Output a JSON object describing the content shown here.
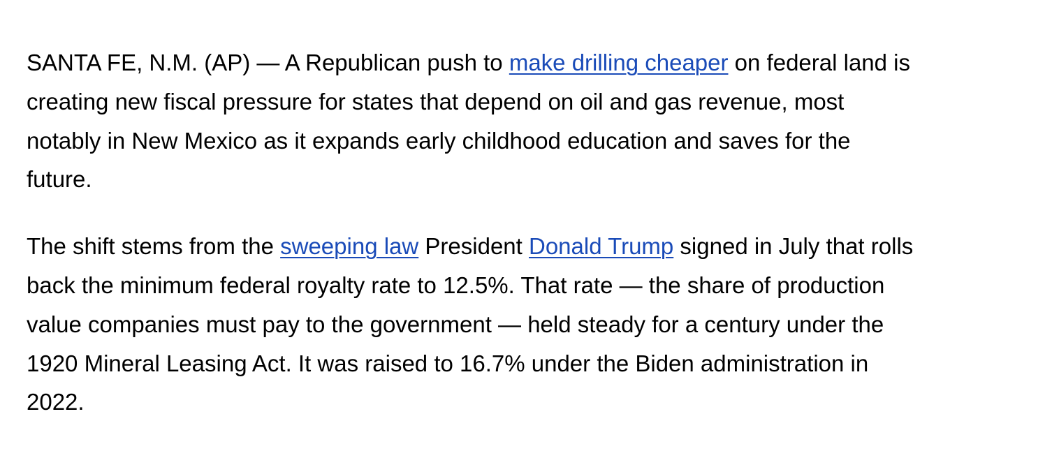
{
  "article": {
    "paragraphs": [
      {
        "lines": [
          {
            "before": "SANTA FE, N.M. (AP) — A Republican push to ",
            "link": "make drilling cheaper",
            "after": " on federal land is"
          },
          {
            "text": "creating new fiscal pressure for states that depend on oil and gas revenue, most"
          },
          {
            "text": "notably in New Mexico as it expands early childhood education and saves for the"
          },
          {
            "text": "future."
          }
        ]
      },
      {
        "lines": [
          {
            "before": "The shift stems from the ",
            "link1": "sweeping law",
            "middle": " President ",
            "link2": "Donald Trump",
            "after": " signed in July that rolls"
          },
          {
            "text": "back the minimum federal royalty rate to 12.5%. That rate — the share of production"
          },
          {
            "text": "value companies must pay to the government — held steady for a century under the"
          },
          {
            "text": "1920 Mineral Leasing Act. It was raised to 16.7% under the Biden administration in"
          },
          {
            "text": "2022."
          }
        ]
      }
    ]
  },
  "colors": {
    "text": "#000000",
    "link": "#1a4bb8",
    "background": "#ffffff"
  }
}
